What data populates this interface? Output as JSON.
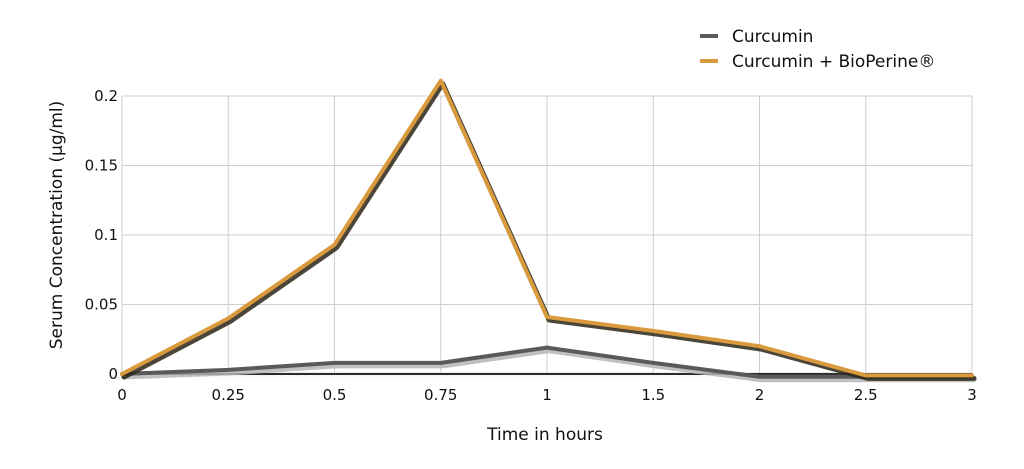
{
  "chart_data": {
    "type": "line",
    "title": "",
    "xlabel": "Time in hours",
    "ylabel": "Serum Concentration (µg/ml)",
    "x": [
      0,
      0.25,
      0.5,
      0.75,
      1,
      1.5,
      2,
      2.5,
      3
    ],
    "x_tick_labels": [
      "0",
      "0.25",
      "0.5",
      "0.75",
      "1",
      "1.5",
      "2",
      "2.5",
      "3"
    ],
    "y_ticks": [
      0,
      0.05,
      0.1,
      0.15,
      0.2
    ],
    "y_tick_labels": [
      "0",
      "0.05",
      "0.1",
      "0.15",
      "0.2"
    ],
    "ylim": [
      0,
      0.2
    ],
    "grid": true,
    "legend_position": "top-right",
    "series": [
      {
        "name": "Curcumin",
        "color": "#5a5a5a",
        "values": [
          0,
          0.003,
          0.008,
          0.008,
          0.019,
          0.008,
          -0.002,
          -0.002,
          -0.002
        ]
      },
      {
        "name": "Curcumin + BioPerine®",
        "color": "#d99a3e",
        "values": [
          0,
          0.04,
          0.093,
          0.211,
          0.041,
          0.031,
          0.02,
          -0.001,
          -0.001
        ]
      }
    ]
  }
}
